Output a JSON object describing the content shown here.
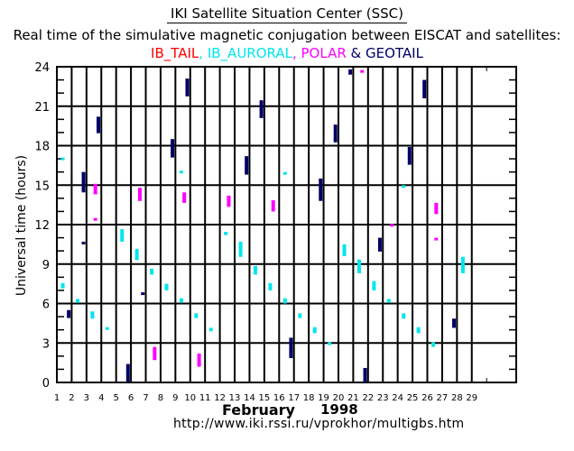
{
  "header": {
    "title": "IKI Satellite Situation Center (SSC)",
    "subtitle": "Real time of the simulative magnetic conjugation between EISCAT and satellites:"
  },
  "footer": {
    "month": "February",
    "year": "1998",
    "url": "http://www.iki.rssi.ru/vprokhor/multigbs.htm"
  },
  "chart_data": {
    "type": "scatter",
    "title": "IKI Satellite Situation Center (SSC)",
    "subtitle": "Real time of the simulative magnetic conjugation between EISCAT and satellites:",
    "xlabel": "February 1998",
    "ylabel": "Universal time (hours)",
    "xlim": [
      1,
      32
    ],
    "ylim": [
      0,
      24
    ],
    "x_ticks": [
      "1",
      "2",
      "3",
      "4",
      "5",
      "6",
      "7",
      "8",
      "9",
      "10",
      "11",
      "12",
      "13",
      "14",
      "15",
      "16",
      "17",
      "18",
      "19",
      "20",
      "21",
      "22",
      "23",
      "24",
      "25",
      "26",
      "27",
      "28",
      "29"
    ],
    "y_ticks": [
      0,
      3,
      6,
      9,
      12,
      15,
      18,
      21,
      24
    ],
    "grid": true,
    "legend_placement": "top-center",
    "legend": [
      {
        "name": "IB_TAIL",
        "color": "#ff0000",
        "sep": ", "
      },
      {
        "name": "IB_AURORAL",
        "color": "#00e5ee",
        "sep": ", "
      },
      {
        "name": "POLAR",
        "color": "#ff00ff",
        "sep": " & "
      },
      {
        "name": "GEOTAIL",
        "color": "#000066",
        "sep": ""
      }
    ],
    "series": [
      {
        "name": "IB_TAIL",
        "color": "#ff0000",
        "intervals": []
      },
      {
        "name": "IB_AURORAL",
        "color": "#00e5ee",
        "intervals": [
          {
            "day": 1.4,
            "from": 16.9,
            "to": 17.1
          },
          {
            "day": 1.4,
            "from": 7.15,
            "to": 7.55
          },
          {
            "day": 2.4,
            "from": 6.05,
            "to": 6.35
          },
          {
            "day": 3.4,
            "from": 4.85,
            "to": 5.4
          },
          {
            "day": 4.4,
            "from": 4.0,
            "to": 4.2
          },
          {
            "day": 5.4,
            "from": 10.7,
            "to": 11.65
          },
          {
            "day": 6.4,
            "from": 9.3,
            "to": 10.15
          },
          {
            "day": 7.4,
            "from": 8.2,
            "to": 8.65
          },
          {
            "day": 8.4,
            "from": 7.0,
            "to": 7.5
          },
          {
            "day": 9.4,
            "from": 15.9,
            "to": 16.1
          },
          {
            "day": 9.4,
            "from": 6.05,
            "to": 6.4
          },
          {
            "day": 10.4,
            "from": 4.9,
            "to": 5.25
          },
          {
            "day": 11.4,
            "from": 3.9,
            "to": 4.15
          },
          {
            "day": 12.4,
            "from": 11.2,
            "to": 11.45
          },
          {
            "day": 13.4,
            "from": 9.55,
            "to": 10.7
          },
          {
            "day": 14.4,
            "from": 8.2,
            "to": 8.85
          },
          {
            "day": 15.4,
            "from": 7.0,
            "to": 7.55
          },
          {
            "day": 16.4,
            "from": 15.8,
            "to": 16.0
          },
          {
            "day": 16.4,
            "from": 6.0,
            "to": 6.4
          },
          {
            "day": 17.4,
            "from": 4.9,
            "to": 5.25
          },
          {
            "day": 18.4,
            "from": 3.75,
            "to": 4.2
          },
          {
            "day": 19.4,
            "from": 2.9,
            "to": 3.05
          },
          {
            "day": 20.4,
            "from": 9.6,
            "to": 10.5
          },
          {
            "day": 21.4,
            "from": 8.3,
            "to": 9.35
          },
          {
            "day": 22.4,
            "from": 7.0,
            "to": 7.7
          },
          {
            "day": 23.4,
            "from": 6.05,
            "to": 6.35
          },
          {
            "day": 24.4,
            "from": 14.8,
            "to": 15.0
          },
          {
            "day": 24.4,
            "from": 4.85,
            "to": 5.25
          },
          {
            "day": 25.4,
            "from": 3.75,
            "to": 4.2
          },
          {
            "day": 26.4,
            "from": 2.7,
            "to": 3.05
          },
          {
            "day": 28.4,
            "from": 8.3,
            "to": 9.55
          }
        ]
      },
      {
        "name": "POLAR",
        "color": "#ff00ff",
        "intervals": [
          {
            "day": 3.6,
            "from": 14.3,
            "to": 15.1
          },
          {
            "day": 3.6,
            "from": 12.3,
            "to": 12.5
          },
          {
            "day": 6.6,
            "from": 13.8,
            "to": 14.8
          },
          {
            "day": 7.6,
            "from": 1.7,
            "to": 2.7
          },
          {
            "day": 9.6,
            "from": 13.65,
            "to": 14.45
          },
          {
            "day": 10.6,
            "from": 1.2,
            "to": 2.2
          },
          {
            "day": 12.6,
            "from": 13.35,
            "to": 14.2
          },
          {
            "day": 15.6,
            "from": 13.0,
            "to": 13.85
          },
          {
            "day": 21.6,
            "from": 23.55,
            "to": 23.75
          },
          {
            "day": 23.6,
            "from": 11.9,
            "to": 12.05
          },
          {
            "day": 26.6,
            "from": 12.8,
            "to": 13.65
          },
          {
            "day": 26.6,
            "from": 10.8,
            "to": 11.0
          }
        ]
      },
      {
        "name": "GEOTAIL",
        "color": "#000066",
        "intervals": [
          {
            "day": 1.8,
            "from": 4.9,
            "to": 5.5
          },
          {
            "day": 2.8,
            "from": 14.45,
            "to": 16.0
          },
          {
            "day": 2.8,
            "from": 10.5,
            "to": 10.7
          },
          {
            "day": 3.8,
            "from": 18.95,
            "to": 20.2
          },
          {
            "day": 5.8,
            "from": 0.05,
            "to": 1.4
          },
          {
            "day": 6.8,
            "from": 6.65,
            "to": 6.85
          },
          {
            "day": 8.8,
            "from": 17.1,
            "to": 18.5
          },
          {
            "day": 9.8,
            "from": 21.75,
            "to": 23.1
          },
          {
            "day": 13.8,
            "from": 15.8,
            "to": 17.2
          },
          {
            "day": 14.8,
            "from": 20.1,
            "to": 21.45
          },
          {
            "day": 16.8,
            "from": 1.85,
            "to": 3.4
          },
          {
            "day": 18.8,
            "from": 13.8,
            "to": 15.5
          },
          {
            "day": 19.8,
            "from": 18.25,
            "to": 19.6
          },
          {
            "day": 20.8,
            "from": 23.4,
            "to": 23.8
          },
          {
            "day": 21.8,
            "from": 0.0,
            "to": 1.1
          },
          {
            "day": 22.8,
            "from": 9.95,
            "to": 11.0
          },
          {
            "day": 24.8,
            "from": 16.55,
            "to": 17.9
          },
          {
            "day": 25.8,
            "from": 21.6,
            "to": 23.0
          },
          {
            "day": 27.8,
            "from": 4.15,
            "to": 4.85
          }
        ]
      }
    ]
  }
}
